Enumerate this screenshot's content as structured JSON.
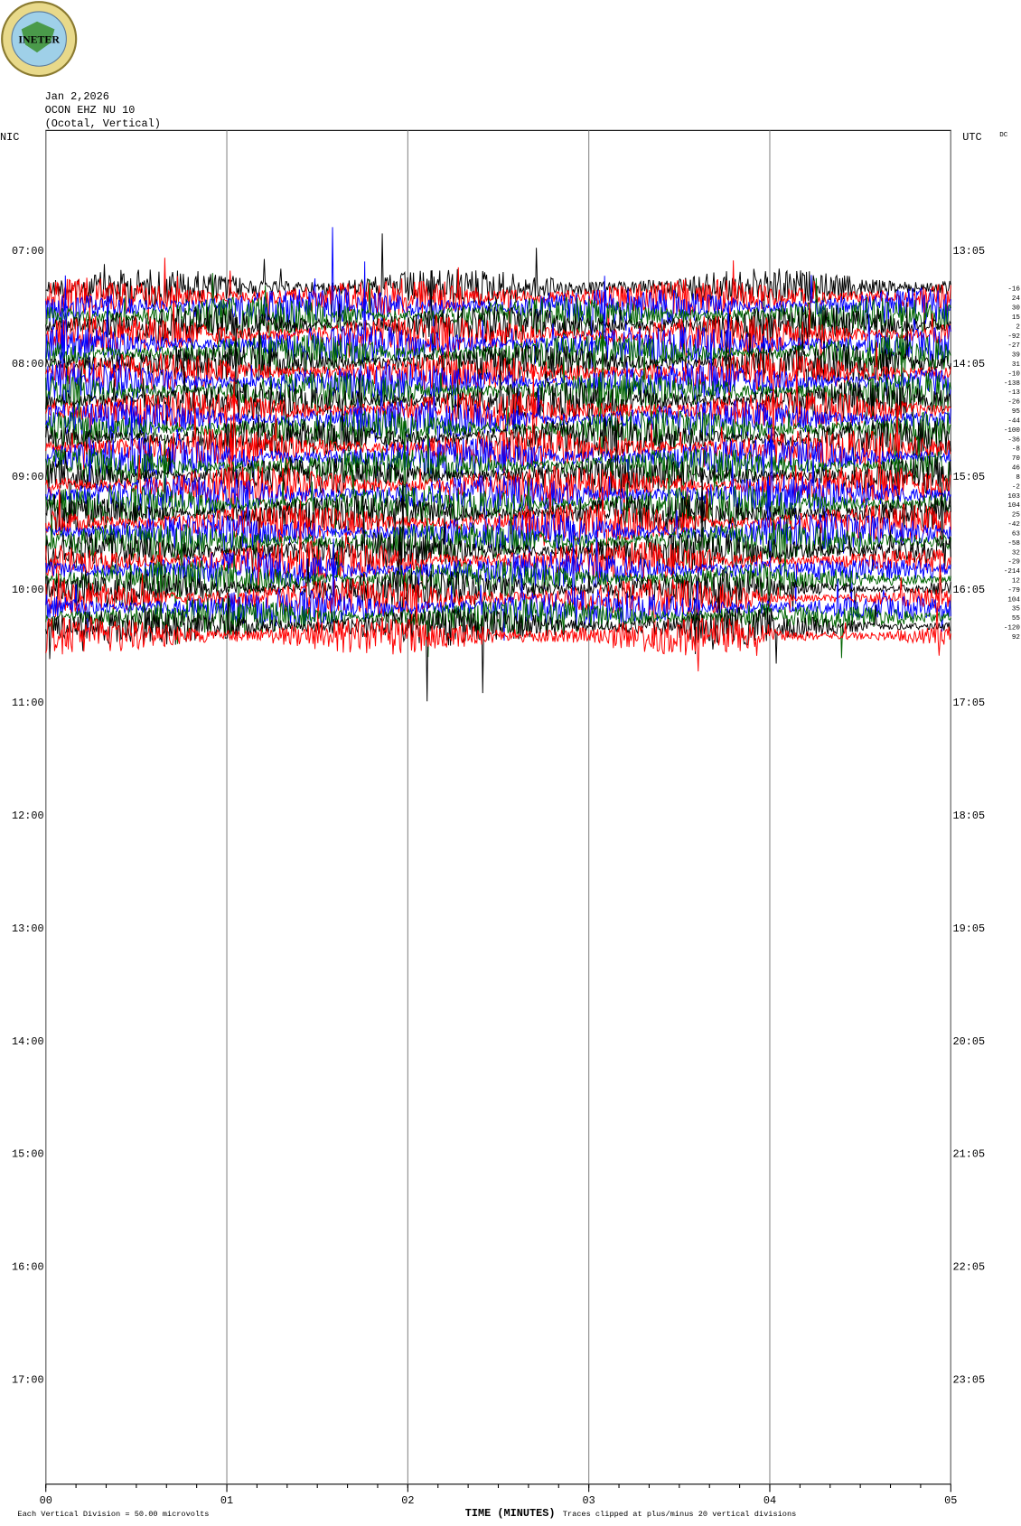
{
  "logo_text": "INETER",
  "chart_data": {
    "type": "helicorder",
    "date": "Jan 2,2026",
    "station": "OCON EHZ NU 10",
    "location": "(Ocotal, Vertical)",
    "left_label": "NIC",
    "right_label": "UTC",
    "dc_label": "DC",
    "left_ticks": [
      "07:00",
      "08:00",
      "09:00",
      "10:00",
      "11:00",
      "12:00",
      "13:00",
      "14:00",
      "15:00",
      "16:00",
      "17:00"
    ],
    "right_ticks": [
      "13:05",
      "14:05",
      "15:05",
      "16:05",
      "17:05",
      "18:05",
      "19:05",
      "20:05",
      "21:05",
      "22:05",
      "23:05"
    ],
    "xlim": [
      0,
      5
    ],
    "xticks": [
      {
        "value": 0,
        "label": "00"
      },
      {
        "value": 1,
        "label": "01"
      },
      {
        "value": 2,
        "label": "02"
      },
      {
        "value": 3,
        "label": "03"
      },
      {
        "value": 4,
        "label": "04"
      },
      {
        "value": 5,
        "label": "05"
      }
    ],
    "xlabel": "TIME (MINUTES)",
    "scale_note": "Each Vertical Division =   50.00 microvolts",
    "clip_note": "Traces clipped at plus/minus 20 vertical divisions",
    "trace_colors": [
      "#000000",
      "#ff0000",
      "#0000ff",
      "#006400"
    ],
    "dc_values": [
      -16,
      24,
      30,
      15,
      2,
      -92,
      -27,
      39,
      31,
      -10,
      -138,
      -13,
      -26,
      95,
      -44,
      -100,
      -36,
      -8,
      70,
      46,
      8,
      -2,
      103,
      104,
      25,
      -42,
      63,
      -58,
      32,
      -29,
      -214,
      12,
      -79,
      104,
      35,
      55,
      -120,
      92
    ],
    "grid": true
  }
}
